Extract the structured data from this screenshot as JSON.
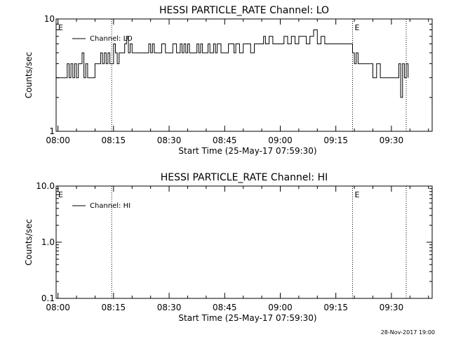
{
  "chart_data": [
    {
      "type": "line",
      "title": "HESSI PARTICLE_RATE Channel: LO",
      "xlabel": "Start Time (25-May-17 07:59:30)",
      "ylabel": "Counts/sec",
      "yscale": "log",
      "ylim": [
        1,
        10
      ],
      "xlim": [
        "07:59:30",
        "09:41:00"
      ],
      "x_ticks": [
        "08:00",
        "08:15",
        "08:30",
        "08:45",
        "09:00",
        "09:15",
        "09:30"
      ],
      "y_ticks": [
        "1",
        "10"
      ],
      "legend": {
        "entries": [
          "Channel: LO"
        ],
        "placement": "top-left"
      },
      "grid": false,
      "markers": [
        {
          "label": "E",
          "time": "07:59:30"
        },
        {
          "label": "E",
          "time": "09:19:30"
        }
      ],
      "vlines": [
        "08:14:30",
        "09:19:30",
        "09:34:00"
      ],
      "series": [
        {
          "name": "Channel: LO",
          "color": "#000000",
          "x": [
            "07:59:30",
            "08:02:00",
            "08:02:30",
            "08:03:00",
            "08:03:30",
            "08:04:00",
            "08:04:30",
            "08:05:00",
            "08:05:30",
            "08:06:00",
            "08:06:30",
            "08:07:00",
            "08:07:30",
            "08:08:00",
            "08:10:00",
            "08:11:00",
            "08:11:30",
            "08:12:00",
            "08:12:30",
            "08:13:00",
            "08:13:30",
            "08:14:00",
            "08:14:30",
            "08:15:00",
            "08:15:30",
            "08:16:00",
            "08:16:30",
            "08:17:00",
            "08:17:30",
            "08:18:00",
            "08:18:30",
            "08:19:00",
            "08:19:30",
            "08:20:00",
            "08:20:30",
            "08:21:00",
            "08:22:00",
            "08:23:00",
            "08:24:00",
            "08:24:30",
            "08:25:00",
            "08:25:30",
            "08:26:00",
            "08:27:00",
            "08:27:30",
            "08:28:00",
            "08:29:00",
            "08:30:00",
            "08:31:00",
            "08:32:00",
            "08:33:00",
            "08:33:30",
            "08:34:00",
            "08:34:30",
            "08:35:00",
            "08:35:30",
            "08:36:00",
            "08:37:00",
            "08:37:30",
            "08:38:00",
            "08:38:30",
            "08:39:00",
            "08:40:00",
            "08:40:30",
            "08:41:00",
            "08:42:00",
            "08:42:30",
            "08:43:00",
            "08:44:00",
            "08:45:00",
            "08:46:00",
            "08:47:00",
            "08:47:30",
            "08:48:00",
            "08:49:00",
            "08:50:00",
            "08:51:00",
            "08:52:00",
            "08:53:00",
            "08:54:00",
            "08:55:00",
            "08:55:30",
            "08:56:00",
            "08:57:00",
            "08:58:00",
            "08:59:00",
            "09:00:00",
            "09:01:00",
            "09:02:00",
            "09:03:00",
            "09:04:00",
            "09:05:00",
            "09:06:00",
            "09:07:00",
            "09:08:00",
            "09:09:00",
            "09:10:00",
            "09:11:00",
            "09:12:00",
            "09:13:00",
            "09:14:00",
            "09:15:00",
            "09:16:00",
            "09:17:00",
            "09:18:00",
            "09:19:00",
            "09:19:30",
            "09:20:00",
            "09:20:30",
            "09:21:00",
            "09:22:00",
            "09:23:00",
            "09:24:00",
            "09:25:00",
            "09:26:00",
            "09:27:00",
            "09:28:00",
            "09:29:00",
            "09:30:00",
            "09:31:00",
            "09:32:00",
            "09:32:30",
            "09:33:00",
            "09:33:30",
            "09:34:00",
            "09:34:30"
          ],
          "y": [
            3,
            3,
            4,
            3,
            4,
            3,
            4,
            3,
            4,
            4,
            5,
            3,
            4,
            3,
            4,
            4,
            5,
            4,
            5,
            4,
            5,
            4,
            4,
            6,
            5,
            4,
            5,
            5,
            5,
            6,
            7,
            5,
            6,
            5,
            5,
            5,
            5,
            5,
            5,
            6,
            5,
            6,
            5,
            5,
            5,
            6,
            5,
            5,
            6,
            5,
            6,
            5,
            6,
            5,
            6,
            5,
            5,
            5,
            6,
            5,
            6,
            5,
            5,
            6,
            5,
            6,
            5,
            6,
            5,
            5,
            6,
            6,
            5,
            6,
            5,
            6,
            6,
            5,
            6,
            6,
            6,
            7,
            6,
            7,
            6,
            6,
            6,
            7,
            6,
            7,
            6,
            7,
            7,
            6,
            7,
            8,
            6,
            7,
            6,
            6,
            6,
            6,
            6,
            6,
            6,
            6,
            5,
            4,
            5,
            4,
            4,
            4,
            4,
            3,
            4,
            3,
            3,
            3,
            3,
            3,
            4,
            2,
            4,
            3,
            4,
            3
          ]
        }
      ]
    },
    {
      "type": "line",
      "title": "HESSI PARTICLE_RATE Channel: HI",
      "xlabel": "Start Time (25-May-17 07:59:30)",
      "ylabel": "Counts/sec",
      "yscale": "log",
      "ylim": [
        0.1,
        10
      ],
      "xlim": [
        "07:59:30",
        "09:41:00"
      ],
      "x_ticks": [
        "08:00",
        "08:15",
        "08:30",
        "08:45",
        "09:00",
        "09:15",
        "09:30"
      ],
      "y_ticks": [
        "0.1",
        "1.0",
        "10.0"
      ],
      "legend": {
        "entries": [
          "Channel: HI"
        ],
        "placement": "top-left"
      },
      "grid": false,
      "markers": [
        {
          "label": "E",
          "time": "07:59:30"
        },
        {
          "label": "E",
          "time": "09:19:30"
        }
      ],
      "vlines": [
        "08:14:30",
        "09:19:30",
        "09:34:00"
      ],
      "series": [
        {
          "name": "Channel: HI",
          "color": "#000000",
          "x": [],
          "y": []
        }
      ]
    }
  ],
  "footer": {
    "timestamp": "28-Nov-2017 19:00"
  }
}
